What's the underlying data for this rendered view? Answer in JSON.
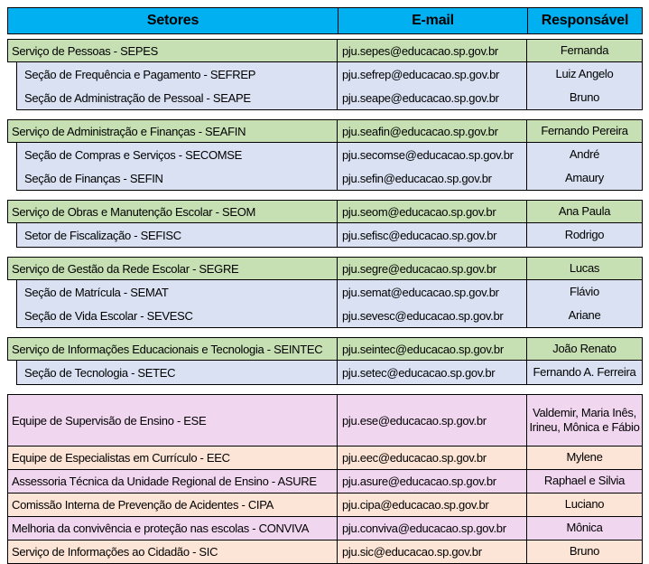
{
  "header": {
    "setores": "Setores",
    "email": "E-mail",
    "responsavel": "Responsável"
  },
  "colors": {
    "header_bg": "#00B0F0",
    "parent_row_bg": "#C6E0B4",
    "child_row_bg": "#D9E1F2",
    "team_pink_bg": "#F1D6F0",
    "team_peach_bg": "#FCE4D6",
    "border": "#000000"
  },
  "groups": [
    {
      "parent": {
        "sector": "Serviço de Pessoas - SEPES",
        "email": "pju.sepes@educacao.sp.gov.br",
        "responsible": "Fernanda"
      },
      "children": [
        {
          "sector": "Seção de Frequência e Pagamento - SEFREP",
          "email": "pju.sefrep@educacao.sp.gov.br",
          "responsible": "Luiz Angelo"
        },
        {
          "sector": "Seção de Administração de Pessoal - SEAPE",
          "email": "pju.seape@educacao.sp.gov.br",
          "responsible": "Bruno"
        }
      ]
    },
    {
      "parent": {
        "sector": "Serviço de Administração e Finanças - SEAFIN",
        "email": "pju.seafin@educacao.sp.gov.br",
        "responsible": "Fernando Pereira"
      },
      "children": [
        {
          "sector": "Seção de Compras e Serviços - SECOMSE",
          "email": "pju.secomse@educacao.sp.gov.br",
          "responsible": "André"
        },
        {
          "sector": "Seção de Finanças - SEFIN",
          "email": "pju.sefin@educacao.sp.gov.br",
          "responsible": "Amaury"
        }
      ]
    },
    {
      "parent": {
        "sector": "Serviço de Obras e Manutenção Escolar - SEOM",
        "email": "pju.seom@educacao.sp.gov.br",
        "responsible": "Ana Paula"
      },
      "children": [
        {
          "sector": "Setor de Fiscalização - SEFISC",
          "email": "pju.sefisc@educacao.sp.gov.br",
          "responsible": "Rodrigo"
        }
      ]
    },
    {
      "parent": {
        "sector": "Serviço de Gestão da Rede Escolar - SEGRE",
        "email": "pju.segre@educacao.sp.gov.br",
        "responsible": "Lucas"
      },
      "children": [
        {
          "sector": "Seção de Matrícula - SEMAT",
          "email": "pju.semat@educacao.sp.gov.br",
          "responsible": "Flávio"
        },
        {
          "sector": "Seção de Vida Escolar - SEVESC",
          "email": "pju.sevesc@educacao.sp.gov.br",
          "responsible": "Ariane"
        }
      ]
    },
    {
      "parent": {
        "sector": "Serviço de Informações Educacionais e Tecnologia - SEINTEC",
        "email": "pju.seintec@educacao.sp.gov.br",
        "responsible": "João Renato"
      },
      "children": [
        {
          "sector": "Seção de Tecnologia - SETEC",
          "email": "pju.setec@educacao.sp.gov.br",
          "responsible": "Fernando A. Ferreira"
        }
      ]
    }
  ],
  "teams": [
    {
      "sector": "Equipe de Supervisão de Ensino - ESE",
      "email": "pju.ese@educacao.sp.gov.br",
      "responsible": "Valdemir, Maria Inês, Irineu, Mônica e Fábio",
      "tall": true
    },
    {
      "sector": "Equipe de Especialistas em Currículo - EEC",
      "email": "pju.eec@educacao.sp.gov.br",
      "responsible": "Mylene"
    },
    {
      "sector": "Assessoria Técnica da Unidade Regional de Ensino - ASURE",
      "email": "pju.asure@educacao.sp.gov.br",
      "responsible": "Raphael e Silvia"
    },
    {
      "sector": "Comissão Interna de Prevenção de Acidentes - CIPA",
      "email": "pju.cipa@educacao.sp.gov.br",
      "responsible": "Luciano"
    },
    {
      "sector": "Melhoria da convivência e proteção nas escolas - CONVIVA",
      "email": "pju.conviva@educacao.sp.gov.br",
      "responsible": "Mônica"
    },
    {
      "sector": "Serviço de Informações ao Cidadão - SIC",
      "email": "pju.sic@educacao.sp.gov.br",
      "responsible": "Bruno"
    }
  ]
}
